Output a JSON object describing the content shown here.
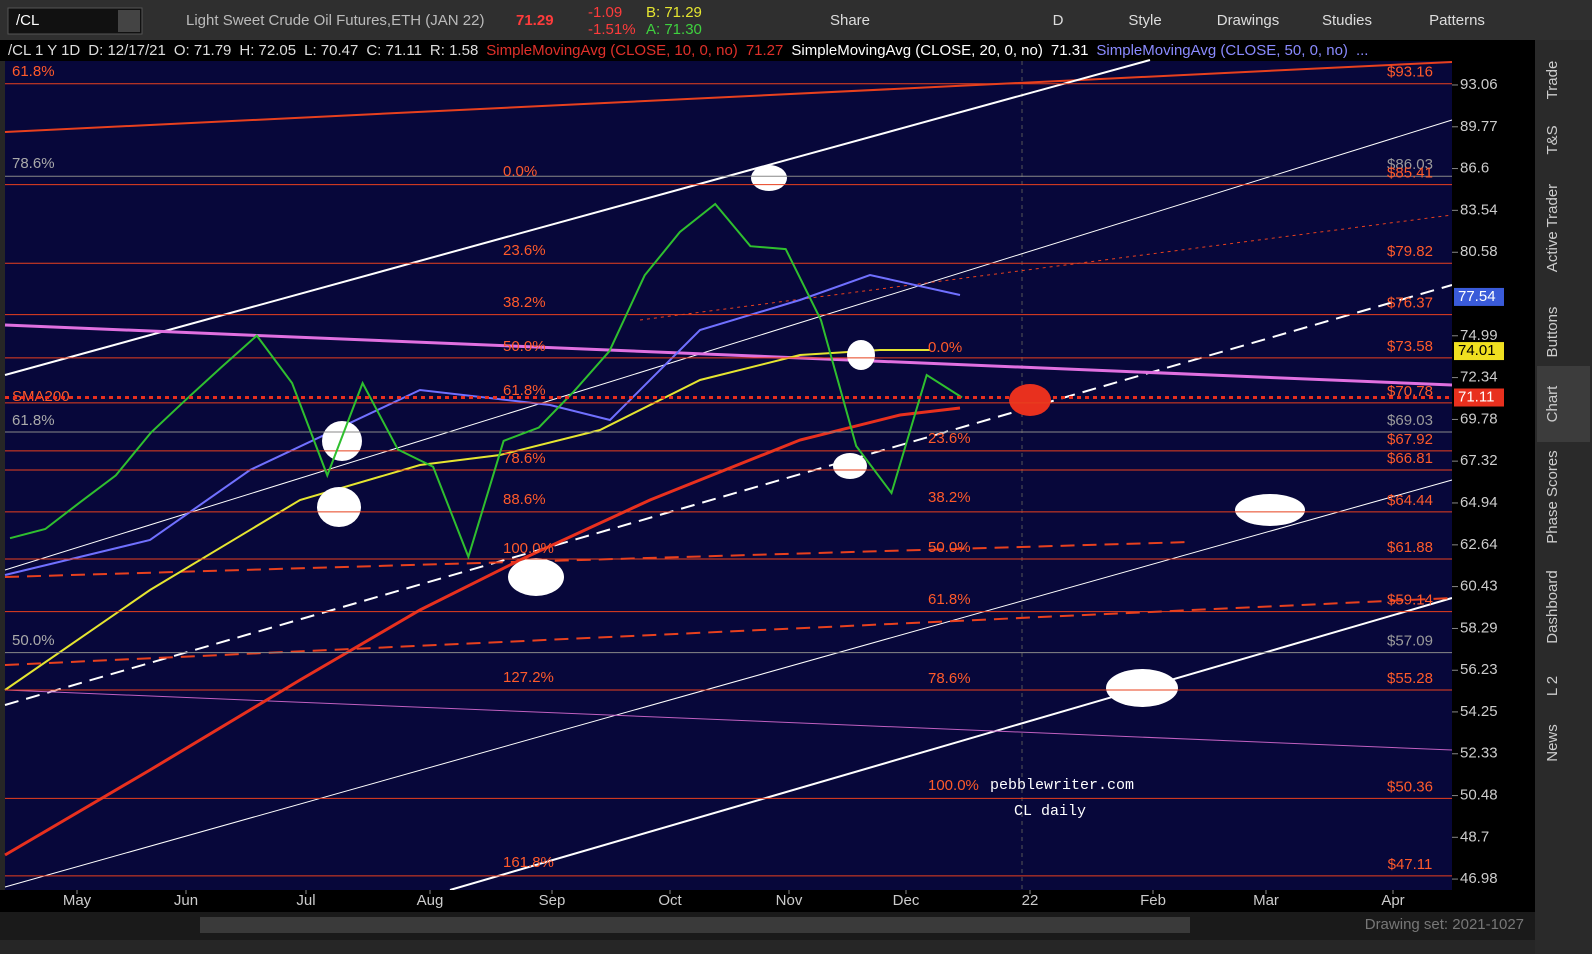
{
  "toolbar": {
    "symbol": "/CL",
    "description": "Light Sweet Crude Oil Futures,ETH (JAN 22)",
    "last": "71.29",
    "change": "-1.09",
    "change_pct": "-1.51%",
    "bid": "B: 71.29",
    "ask": "A: 71.30",
    "buttons": [
      "Share",
      "D",
      "Style",
      "Drawings",
      "Studies",
      "Patterns"
    ]
  },
  "info_bar": {
    "chart": "/CL 1 Y 1D",
    "date": "D: 12/17/21",
    "open": "O: 71.79",
    "high": "H: 72.05",
    "low": "L: 70.47",
    "close": "C: 71.11",
    "range": "R: 1.58",
    "studies": [
      {
        "name": "SimpleMovingAvg (CLOSE, 10, 0, no)",
        "value": "71.27",
        "color": "#e0302a"
      },
      {
        "name": "SimpleMovingAvg (CLOSE, 20, 0, no)",
        "value": "71.31",
        "color": "#ffffff"
      },
      {
        "name": "SimpleMovingAvg (CLOSE, 50, 0, no)",
        "value": "...",
        "color": "#8a8aff"
      }
    ]
  },
  "chart_data": {
    "type": "line",
    "log_scale": true,
    "ylim": [
      46.54,
      95.0
    ],
    "yticks": [
      93.06,
      89.77,
      86.6,
      83.54,
      80.58,
      74.99,
      72.34,
      69.78,
      67.32,
      64.94,
      62.64,
      60.43,
      58.29,
      56.23,
      54.25,
      52.33,
      50.48,
      48.7,
      46.98
    ],
    "x_labels": [
      "May",
      "Jun",
      "Jul",
      "Aug",
      "Sep",
      "Oct",
      "Nov",
      "Dec",
      "22",
      "Feb",
      "Mar",
      "Apr"
    ],
    "series": [
      {
        "color": "#2fbf2f",
        "values": [
          63,
          63.5,
          65,
          66.5,
          69,
          71,
          73,
          75,
          72,
          66.5,
          72,
          68,
          67,
          62,
          68.5,
          69.3,
          71.5,
          74,
          79,
          82,
          84,
          81,
          80.8,
          76,
          68.2,
          65.5,
          72.5,
          71.11
        ]
      }
    ],
    "price_markers": [
      {
        "value": 77.54,
        "color": "#3a5bd9"
      },
      {
        "value": 74.01,
        "color": "#f0e020"
      },
      {
        "value": 71.11,
        "color": "#e8301e"
      }
    ],
    "levels": [
      {
        "value": 93.16,
        "label": "$93.16",
        "color": "#ff5a2a"
      },
      {
        "value": 86.03,
        "label": "$86.03",
        "color": "#9a9a9a"
      },
      {
        "value": 85.41,
        "label": "$85.41",
        "color": "#ff5a2a"
      },
      {
        "value": 79.82,
        "label": "$79.82",
        "color": "#ff5a2a"
      },
      {
        "value": 76.37,
        "label": "$76.37",
        "color": "#ff5a2a"
      },
      {
        "value": 73.58,
        "label": "$73.58",
        "color": "#ff5a2a"
      },
      {
        "value": 70.78,
        "label": "$70.78",
        "color": "#ff5a2a"
      },
      {
        "value": 69.03,
        "label": "$69.03",
        "color": "#9a9a9a"
      },
      {
        "value": 67.92,
        "label": "$67.92",
        "color": "#ff5a2a"
      },
      {
        "value": 66.81,
        "label": "$66.81",
        "color": "#ff5a2a"
      },
      {
        "value": 64.44,
        "label": "$64.44",
        "color": "#ff5a2a"
      },
      {
        "value": 61.88,
        "label": "$61.88",
        "color": "#ff5a2a"
      },
      {
        "value": 59.14,
        "label": "$59.14",
        "color": "#ff5a2a"
      },
      {
        "value": 57.09,
        "label": "$57.09",
        "color": "#9a9a9a"
      },
      {
        "value": 55.28,
        "label": "$55.28",
        "color": "#ff5a2a"
      },
      {
        "value": 50.36,
        "label": "$50.36",
        "color": "#ff5a2a"
      },
      {
        "value": 47.11,
        "label": "$47.11",
        "color": "#ff5a2a"
      }
    ],
    "fib_labels_left": [
      "61.8%",
      "78.6%",
      "61.8%",
      "50.0%"
    ],
    "fib_labels_mid": [
      "0.0%",
      "23.6%",
      "38.2%",
      "50.0%",
      "61.8%",
      "78.6%",
      "88.6%",
      "100.0%",
      "127.2%",
      "161.8%"
    ],
    "fib_labels_right": [
      "0.0%",
      "23.6%",
      "38.2%",
      "50.0%",
      "61.8%",
      "78.6%",
      "100.0%"
    ],
    "annotations": {
      "sma200": "SMA200",
      "watermark": "pebblewriter.com",
      "subtitle": "CL daily"
    }
  },
  "sidebar": [
    "Trade",
    "T&S",
    "Active Trader",
    "Buttons",
    "Chart",
    "Phase Scores",
    "Dashboard",
    "L 2",
    "News"
  ],
  "footer": {
    "drawing_set": "Drawing set: 2021-1027"
  }
}
